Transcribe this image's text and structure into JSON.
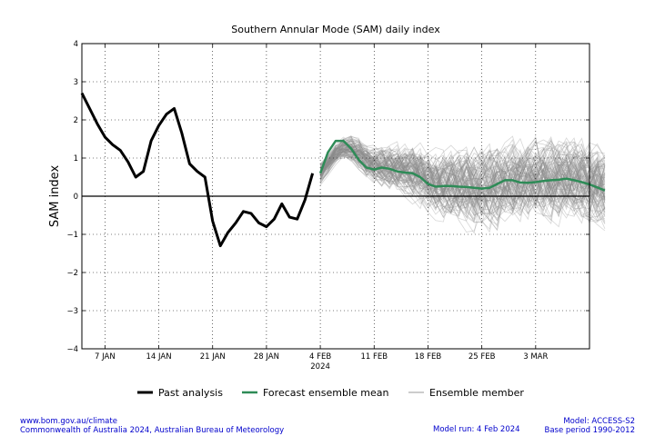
{
  "chart_data": {
    "type": "line",
    "title": "Southern Annular Mode (SAM) daily index",
    "ylabel": "SAM index",
    "xlabel": "",
    "ylim": [
      -4,
      4
    ],
    "yticks": [
      "4",
      "3",
      "2",
      "1",
      "0",
      "−1",
      "−2",
      "−3",
      "−4"
    ],
    "x_range": [
      "2024-01-04",
      "2024-03-10"
    ],
    "xticks": [
      {
        "date": "2024-01-07",
        "label": "7 JAN",
        "sublabel": ""
      },
      {
        "date": "2024-01-14",
        "label": "14 JAN",
        "sublabel": ""
      },
      {
        "date": "2024-01-21",
        "label": "21 JAN",
        "sublabel": ""
      },
      {
        "date": "2024-01-28",
        "label": "28 JAN",
        "sublabel": ""
      },
      {
        "date": "2024-02-04",
        "label": "4 FEB",
        "sublabel": "2024"
      },
      {
        "date": "2024-02-11",
        "label": "11 FEB",
        "sublabel": ""
      },
      {
        "date": "2024-02-18",
        "label": "18 FEB",
        "sublabel": ""
      },
      {
        "date": "2024-02-25",
        "label": "25 FEB",
        "sublabel": ""
      },
      {
        "date": "2024-03-03",
        "label": "3 MAR",
        "sublabel": ""
      }
    ],
    "grid": true,
    "legend_position": "bottom",
    "series": [
      {
        "name": "Past analysis",
        "color": "#000000",
        "start": "2024-01-04",
        "values": [
          2.7,
          2.3,
          1.9,
          1.55,
          1.35,
          1.2,
          0.9,
          0.5,
          0.65,
          1.45,
          1.85,
          2.15,
          2.3,
          1.65,
          0.85,
          0.65,
          0.5,
          -0.65,
          -1.3,
          -0.95,
          -0.7,
          -0.4,
          -0.45,
          -0.7,
          -0.8,
          -0.6,
          -0.2,
          -0.55,
          -0.6,
          -0.1,
          0.6
        ]
      },
      {
        "name": "Forecast ensemble mean",
        "color": "#2e8b57",
        "start": "2024-02-04",
        "values": [
          0.6,
          1.15,
          1.45,
          1.45,
          1.25,
          0.95,
          0.75,
          0.7,
          0.75,
          0.72,
          0.65,
          0.62,
          0.6,
          0.5,
          0.32,
          0.25,
          0.27,
          0.27,
          0.25,
          0.24,
          0.22,
          0.2,
          0.22,
          0.32,
          0.42,
          0.42,
          0.36,
          0.35,
          0.37,
          0.4,
          0.42,
          0.43,
          0.46,
          0.42,
          0.37,
          0.31,
          0.23,
          0.15
        ]
      },
      {
        "name": "Ensemble member",
        "color": "#999999",
        "start": "2024-02-04",
        "values": []
      }
    ]
  },
  "footer": {
    "left_line1": "www.bom.gov.au/climate",
    "left_line2": "Commonwealth of Australia 2024, Australian Bureau of Meteorology",
    "mid_line1": "Model run: 4 Feb 2024",
    "right_line1": "Model: ACCESS-S2",
    "right_line2": "Base period 1990-2012"
  }
}
